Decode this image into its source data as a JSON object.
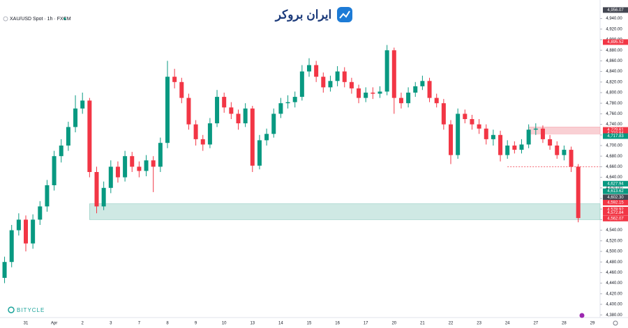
{
  "chart_data": {
    "type": "candlestick",
    "title": "XAU/USD Spot · 1h · FXCM",
    "logo": "ایران بروکر",
    "watermark": "BITYCLE",
    "up_color": "#089981",
    "down_color": "#f23645",
    "categories": [
      null,
      null,
      null,
      null,
      "31",
      null,
      null,
      null,
      "Apr",
      null,
      null,
      null,
      "2",
      null,
      null,
      null,
      "3",
      null,
      null,
      null,
      "7",
      null,
      null,
      null,
      "8",
      null,
      null,
      null,
      "9",
      null,
      null,
      null,
      "10",
      null,
      null,
      null,
      "13",
      null,
      null,
      null,
      "14",
      null,
      null,
      null,
      "15",
      null,
      null,
      null,
      "16",
      null,
      null,
      null,
      "17",
      null,
      null,
      null,
      "20",
      null,
      null,
      null,
      "21",
      null,
      null,
      null,
      "22",
      null,
      null,
      null,
      "23",
      null,
      null,
      null,
      "24",
      null,
      null,
      null,
      "27",
      null,
      null,
      null,
      "28",
      null,
      null,
      null,
      "29"
    ],
    "open": [
      null,
      4450,
      4480,
      4540,
      4560,
      4515,
      4560,
      4585,
      4625,
      4680,
      4700,
      4735,
      4770,
      4785,
      4650,
      4585,
      4620,
      4660,
      4640,
      4680,
      4660,
      4652,
      4672,
      4660,
      4705,
      4830,
      4820,
      4790,
      4740,
      4712,
      4702,
      4742,
      4792,
      4772,
      4760,
      4742,
      4770,
      4662,
      4710,
      4722,
      4760,
      4780,
      4782,
      4792,
      4840,
      4852,
      4830,
      4810,
      4822,
      4840,
      4820,
      4808,
      4790,
      4800,
      4798,
      4802,
      4880,
      4790,
      4780,
      4800,
      4812,
      4822,
      4790,
      4780,
      4740,
      4682,
      4760,
      4750,
      4740,
      4732,
      4712,
      4720,
      4682,
      4700,
      4692,
      4702,
      4730,
      4732,
      4712,
      4700,
      4682,
      4692,
      4660,
      null,
      null
    ],
    "high": [
      null,
      4490,
      4550,
      4572,
      4568,
      4570,
      4595,
      4635,
      4690,
      4712,
      4745,
      4795,
      4800,
      4790,
      4660,
      4632,
      4672,
      4670,
      4690,
      4688,
      4670,
      4682,
      4680,
      4715,
      4860,
      4845,
      4828,
      4798,
      4748,
      4720,
      4752,
      4805,
      4800,
      4782,
      4768,
      4780,
      4775,
      4720,
      4732,
      4770,
      4790,
      4795,
      4802,
      4852,
      4865,
      4860,
      4838,
      4832,
      4850,
      4848,
      4828,
      4815,
      4810,
      4810,
      4812,
      4890,
      4885,
      4800,
      4810,
      4820,
      4832,
      4828,
      4798,
      4788,
      4748,
      4770,
      4768,
      4758,
      4750,
      4740,
      4730,
      4728,
      4710,
      4708,
      4712,
      4740,
      4742,
      4738,
      4720,
      4708,
      4700,
      4698,
      4665,
      null,
      null
    ],
    "low": [
      null,
      4440,
      4470,
      4530,
      4500,
      4505,
      4550,
      4575,
      4615,
      4668,
      4690,
      4725,
      4760,
      4640,
      4572,
      4578,
      4610,
      4630,
      4632,
      4650,
      4640,
      4642,
      4612,
      4650,
      4695,
      4808,
      4780,
      4730,
      4700,
      4690,
      4695,
      4735,
      4762,
      4750,
      4730,
      4735,
      4650,
      4655,
      4700,
      4715,
      4752,
      4770,
      4772,
      4785,
      4830,
      4820,
      4800,
      4802,
      4812,
      4810,
      4798,
      4780,
      4782,
      4788,
      4790,
      4795,
      4760,
      4770,
      4772,
      4792,
      4805,
      4782,
      4772,
      4730,
      4665,
      4675,
      4742,
      4730,
      4722,
      4702,
      4700,
      4670,
      4675,
      4685,
      4685,
      4695,
      4720,
      4705,
      4692,
      4675,
      4672,
      4650,
      4555,
      null,
      null
    ],
    "close": [
      null,
      4480,
      4540,
      4560,
      4515,
      4560,
      4585,
      4625,
      4680,
      4700,
      4735,
      4770,
      4785,
      4650,
      4585,
      4620,
      4660,
      4640,
      4680,
      4660,
      4652,
      4672,
      4660,
      4705,
      4830,
      4820,
      4790,
      4740,
      4712,
      4702,
      4742,
      4792,
      4772,
      4760,
      4742,
      4770,
      4662,
      4710,
      4722,
      4760,
      4780,
      4782,
      4792,
      4840,
      4852,
      4830,
      4810,
      4822,
      4840,
      4820,
      4808,
      4790,
      4800,
      4798,
      4802,
      4880,
      4790,
      4780,
      4800,
      4812,
      4822,
      4790,
      4780,
      4740,
      4682,
      4760,
      4750,
      4740,
      4732,
      4712,
      4720,
      4682,
      4700,
      4692,
      4702,
      4730,
      4732,
      4712,
      4700,
      4682,
      4692,
      4660,
      4563,
      null,
      null
    ],
    "ylim": [
      4375,
      4975
    ],
    "yticks": [
      {
        "value": 4380,
        "label": "4,380.00"
      },
      {
        "value": 4400,
        "label": "4,400.00"
      },
      {
        "value": 4420,
        "label": "4,420.00"
      },
      {
        "value": 4440,
        "label": "4,440.00"
      },
      {
        "value": 4460,
        "label": "4,460.00"
      },
      {
        "value": 4480,
        "label": "4,480.00"
      },
      {
        "value": 4500,
        "label": "4,500.00"
      },
      {
        "value": 4520,
        "label": "4,520.00"
      },
      {
        "value": 4540,
        "label": "4,540.00"
      },
      {
        "value": 4560,
        "label": "4,560.00"
      },
      {
        "value": 4580,
        "label": "4,580.00"
      },
      {
        "value": 4600,
        "label": "4,600.00"
      },
      {
        "value": 4620,
        "label": "4,620.00"
      },
      {
        "value": 4640,
        "label": "4,640.00"
      },
      {
        "value": 4660,
        "label": "4,660.00"
      },
      {
        "value": 4680,
        "label": "4,680.00"
      },
      {
        "value": 4700,
        "label": "4,700.00"
      },
      {
        "value": 4720,
        "label": "4,720.00"
      },
      {
        "value": 4740,
        "label": "4,740.00"
      },
      {
        "value": 4760,
        "label": "4,760.00"
      },
      {
        "value": 4780,
        "label": "4,780.00"
      },
      {
        "value": 4800,
        "label": "4,800.00"
      },
      {
        "value": 4820,
        "label": "4,820.00"
      },
      {
        "value": 4840,
        "label": "4,840.00"
      },
      {
        "value": 4860,
        "label": "4,860.00"
      },
      {
        "value": 4880,
        "label": "4,880.00"
      },
      {
        "value": 4900,
        "label": "4,900.00"
      },
      {
        "value": 4920,
        "label": "4,920.00"
      },
      {
        "value": 4940,
        "label": "4,940.00"
      }
    ],
    "zones": [
      {
        "start": 13,
        "ylim": [
          4560,
          4590
        ],
        "color": "#cfe9e4"
      },
      {
        "start": 75,
        "ylim": [
          4722,
          4735
        ],
        "color": "#f9d0d4"
      }
    ],
    "levels": [
      {
        "start": 72,
        "value": 4660,
        "color": "#f23645"
      }
    ],
    "price_tags": [
      {
        "value": 4956.07,
        "label": "4,956.07",
        "color": "#434651"
      },
      {
        "value": 4895.52,
        "label": "4,895.52",
        "color": "#f23645"
      },
      {
        "value": 4729.61,
        "label": "4,729.61",
        "color": "#f23645"
      },
      {
        "value": 4722.94,
        "label": "4,722.94",
        "color": "#f23645"
      },
      {
        "value": 4717.83,
        "label": "4,717.83",
        "color": "#089981"
      },
      {
        "value": 4627.94,
        "label": "4,627.94",
        "color": "#089981"
      },
      {
        "value": 4613.62,
        "label": "4,613.62",
        "color": "#089981"
      },
      {
        "value": 4602.3,
        "label": "4,602.30",
        "color": "#434651"
      },
      {
        "value": 4592.15,
        "label": "4,592.15",
        "color": "#f23645"
      },
      {
        "value": 4578.92,
        "label": "4,578.92",
        "color": "#f23645"
      },
      {
        "value": 4572.84,
        "label": "4,572.84",
        "color": "#f23645"
      },
      {
        "value": 4562.07,
        "label": "4,562.07",
        "color": "#f23645"
      }
    ]
  }
}
